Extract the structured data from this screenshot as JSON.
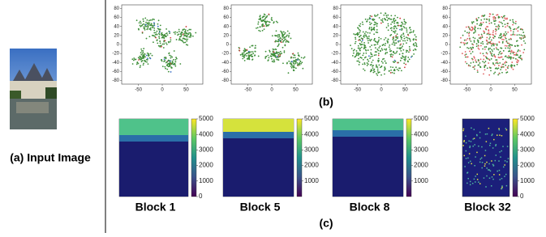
{
  "panel_a": {
    "caption": "(a) Input Image"
  },
  "panel_b": {
    "label": "(b)",
    "plots": [
      {
        "xlim": [
          -85,
          85
        ],
        "ylim": [
          -88,
          88
        ],
        "xticks": [
          -50,
          0,
          50
        ],
        "yticks": [
          80,
          60,
          40,
          20,
          0,
          -20,
          -40,
          -60,
          -80
        ]
      },
      {
        "xlim": [
          -85,
          85
        ],
        "ylim": [
          -88,
          88
        ],
        "xticks": [
          -50,
          0,
          50
        ],
        "yticks": [
          80,
          60,
          40,
          20,
          0,
          -20,
          -40,
          -60,
          -80
        ]
      },
      {
        "xlim": [
          -85,
          85
        ],
        "ylim": [
          -88,
          88
        ],
        "xticks": [
          -50,
          0,
          50
        ],
        "yticks": [
          80,
          60,
          40,
          20,
          0,
          -20,
          -40,
          -60,
          -80
        ]
      },
      {
        "xlim": [
          -85,
          85
        ],
        "ylim": [
          -88,
          88
        ],
        "xticks": [
          -50,
          0,
          50
        ],
        "yticks": [
          80,
          60,
          40,
          20,
          0,
          -20,
          -40,
          -60,
          -80
        ]
      }
    ]
  },
  "panel_c": {
    "label": "(c)",
    "maps": [
      {
        "title": "Block 1",
        "colorbar_lim": [
          0,
          5000
        ],
        "colorbar_ticks": [
          0,
          1000,
          2000,
          3000,
          4000,
          5000
        ]
      },
      {
        "title": "Block 5",
        "colorbar_lim": [
          0,
          5000
        ],
        "colorbar_ticks": [
          1000,
          2000,
          3000,
          4000,
          5000
        ]
      },
      {
        "title": "Block 8",
        "colorbar_lim": [
          0,
          5000
        ],
        "colorbar_ticks": [
          1000,
          2000,
          3000,
          4000,
          5000
        ]
      },
      {
        "title": "Block 32",
        "colorbar_lim": [
          0,
          5000
        ],
        "colorbar_ticks": [
          0,
          1000,
          2000,
          3000,
          4000,
          5000
        ]
      }
    ]
  }
}
